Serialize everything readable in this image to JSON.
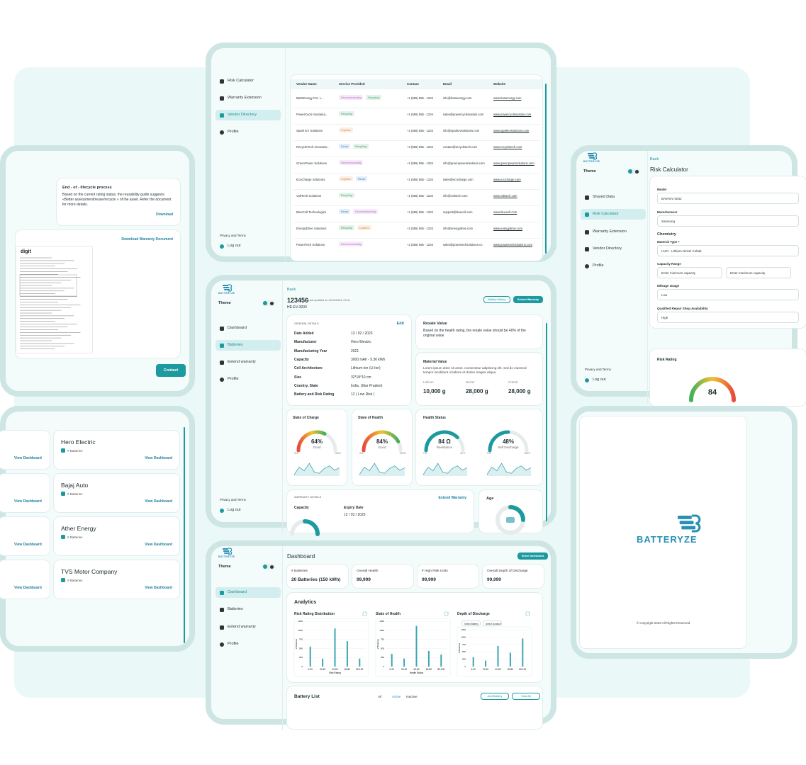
{
  "vendor_directory": {
    "menu": [
      "Risk Calculator",
      "Warranty Extension",
      "Vendor Directory",
      "Profile"
    ],
    "footer": [
      "Privacy and Terms",
      "Log out"
    ],
    "columns": [
      "Vendor Name",
      "Service Provided",
      "Contact",
      "Email",
      "Website"
    ],
    "tag_colors": {
      "Decommissioning": "#b764c9",
      "Recycling": "#3f9f6a",
      "Logistics": "#e08a3c",
      "Reuse": "#3b7fd0"
    },
    "rows": [
      {
        "name": "BatXEnergy Pvt. L...",
        "services": [
          "Decommissioning",
          "Recycling"
        ],
        "contact": "+1 (555) 555 - 1234",
        "email": "info@batxenergy.com",
        "website": "www.batxenergy.com"
      },
      {
        "name": "PowerCycle Sustaina...",
        "services": [
          "Recycling"
        ],
        "contact": "+1 (555) 555 - 1234",
        "email": "sales@powercyclesustain.com",
        "website": "www.powercyclesustain.com"
      },
      {
        "name": "Spark EV Solutions",
        "services": [
          "Logistics"
        ],
        "contact": "+1 (555) 555 - 1234",
        "email": "info@sparkevsolutions.com",
        "website": "www.sparkevsolutions.com"
      },
      {
        "name": "RecycleTech Innovatio...",
        "services": [
          "Reuse",
          "Recycling"
        ],
        "contact": "+1 (555) 555 - 1234",
        "email": "contact@recycletech.com",
        "website": "www.recycletech.com"
      },
      {
        "name": "GreenPower Solutions",
        "services": [
          "Decommissioning"
        ],
        "contact": "+1 (555) 555 - 1234",
        "email": "info@greenpowersolutions.com",
        "website": "www.greenpowersolutions.com"
      },
      {
        "name": "EcoCharge Solutions",
        "services": [
          "Logistics",
          "Reuse"
        ],
        "contact": "+1 (555) 555 - 1234",
        "email": "sales@ecocharge.com",
        "website": "www.ecocharge.com"
      },
      {
        "name": "VoltTech Solutions",
        "services": [
          "Recycling"
        ],
        "contact": "+1 (555) 555 - 1234",
        "email": "info@volttech.com",
        "website": "www.volttech.com"
      },
      {
        "name": "BlueCell Technologies",
        "services": [
          "Reuse",
          "Decommissioning"
        ],
        "contact": "+1 (555) 555 - 1234",
        "email": "support@bluecell.com",
        "website": "www.bluecell.com"
      },
      {
        "name": "EnergyDrive Solutions",
        "services": [
          "Recycling",
          "Logistics"
        ],
        "contact": "+1 (555) 555 - 1234",
        "email": "info@energydrive.com",
        "website": "www.energydrive.com"
      },
      {
        "name": "PowerTech Solutions",
        "services": [
          "Decommissioning"
        ],
        "contact": "+1 (555) 555 - 1234",
        "email": "sales@powertechsolutions.co",
        "website": "www.powertechsolutions.com"
      }
    ]
  },
  "lifecycle": {
    "title": "End - of - lifecycle process",
    "text": "Based on the current rating status, the reusability guide suggests «Better assessment/reuse/recycle » of the asset. Refer the document for more details.",
    "download": "Download",
    "warranty_link": "Download Warranty Document",
    "doc_logo": "digit",
    "contact": "Contact"
  },
  "battery_detail": {
    "logo": "BATTERYZE",
    "theme": "Theme",
    "menu": [
      "Dashboard",
      "Batteries",
      "Extend warranty",
      "Profile"
    ],
    "footer": [
      "Privacy and Terms",
      "Log out"
    ],
    "back": "Back",
    "id": "123456",
    "updated": "Last updated on 12/04/2024, 09:41",
    "model": "HE-EV-3030",
    "buttons": [
      "Battery History",
      "Extend Warranty"
    ],
    "general": {
      "title": "GENERAL DETAILS",
      "edit": "Edit",
      "rows": [
        [
          "Date Added",
          "13 / 02 / 2023"
        ],
        [
          "Manufacturer",
          "Hero Electric"
        ],
        [
          "Manufacturing Year",
          "2021"
        ],
        [
          "Capacity",
          "3000 mAh - 9.36 kWh"
        ],
        [
          "Cell Architecture",
          "Lithium-ion (Li-Ion)"
        ],
        [
          "Size",
          "32*18*10 cm"
        ],
        [
          "Country, State",
          "India, Uttar Pradesh"
        ],
        [
          "Battery and Risk Rating",
          "12  ( Low Risk )"
        ]
      ]
    },
    "resale": {
      "title": "Resale Value",
      "text": "Based on the health rating, the resale value should be 40% of the original value"
    },
    "material": {
      "title": "Material Value",
      "text": "Lorem ipsum dolor sit amet, consectetur adipiscing elit, sed do eiusmod tempor incididunt ut labore et dolore magna aliqua.",
      "items": [
        [
          "Lithium",
          "10,000 g"
        ],
        [
          "Nickel",
          "28,000 g"
        ],
        [
          "Cobalt",
          "28,000 g"
        ]
      ]
    },
    "gauges": [
      {
        "title": "State of Charge",
        "value": 64,
        "label": "64%",
        "status": "Good",
        "range": [
          0,
          100
        ],
        "range_labels": [
          "0%",
          "100%"
        ]
      },
      {
        "title": "State of Health",
        "value": 84,
        "label": "84%",
        "status": "Good",
        "range": [
          0,
          100
        ],
        "range_labels": [
          "0%",
          "100%"
        ]
      }
    ],
    "health": {
      "title": "Health Status",
      "items": [
        {
          "label": "84 Ω",
          "caption": "Resistance",
          "range_labels": [
            "0 V",
            "10 V"
          ]
        },
        {
          "label": "48%",
          "caption": "Self Discharge",
          "range_labels": [
            "0%",
            "100%"
          ]
        }
      ]
    },
    "warranty": {
      "title": "WARRANTY DETAILS",
      "extend": "Extend Warranty",
      "fields": [
        "Capacity",
        "Expiry Date"
      ],
      "expiry": "12 / 03 / 2025"
    },
    "age": "Age"
  },
  "risk_calculator": {
    "logo": "BATTERYZE",
    "theme": "Theme",
    "menu": [
      "Shared Data",
      "Risk Calculator",
      "Warranty Extension",
      "Vendor Directory",
      "Profile"
    ],
    "footer": [
      "Privacy and Terms",
      "Log out"
    ],
    "back": "Back",
    "title": "Risk Calculator",
    "section": "Chemistry",
    "fields": [
      {
        "label": "Model",
        "values": [
          "BAM-EV-3032"
        ]
      },
      {
        "label": "Manufacturer",
        "values": [
          "Samsung"
        ]
      },
      {
        "label": "Material Type *",
        "values": [
          "LNCI - Lithium Nickel Cobalt"
        ]
      },
      {
        "label": "Capacity Range",
        "values": [
          "Enter minimum capacity",
          "Enter maximum capacity"
        ]
      },
      {
        "label": "Mileage Usage",
        "values": [
          "Low"
        ]
      },
      {
        "label": "Qualified Repair Shop Availability",
        "values": [
          "High"
        ]
      }
    ],
    "rating_title": "Risk Rating",
    "rating": "84"
  },
  "vendors": {
    "side_links": [
      "View Dashboard",
      "View Dashboard",
      "View Dashboard",
      "View Dashboard"
    ],
    "cards": [
      {
        "name": "Hero Electric",
        "count": "# Batteries",
        "link": "View Dashboard"
      },
      {
        "name": "Bajaj Auto",
        "count": "# Batteries",
        "link": "View Dashboard"
      },
      {
        "name": "Ather Energy",
        "count": "# Batteries",
        "link": "View Dashboard"
      },
      {
        "name": "TVS Motor Company",
        "count": "# Batteries",
        "link": "View Dashboard"
      }
    ]
  },
  "dashboard": {
    "logo": "BATTERYZE",
    "theme": "Theme",
    "menu": [
      "Dashboard",
      "Batteries",
      "Extend warranty",
      "Profile"
    ],
    "title": "Dashboard",
    "share": "Share Dashboard",
    "stats": [
      {
        "label": "# Batteries",
        "value": "20 Batteries (150 kWh)"
      },
      {
        "label": "Overall Health",
        "value": "99,999"
      },
      {
        "label": "# High Risk Units",
        "value": "99,999"
      },
      {
        "label": "Overall Depth of Discharge",
        "value": "99,999"
      }
    ],
    "analytics": "Analytics",
    "selects": [
      "Select Battery",
      "Select Duration"
    ],
    "charts": [
      {
        "type": "bar",
        "title": "Risk Rating Distribution",
        "categories": [
          "0-20",
          "20-40",
          "40-60",
          "60-80",
          "80-100"
        ],
        "values": [
          550,
          220,
          1050,
          700,
          220
        ],
        "ylim": [
          0,
          1250
        ],
        "yticks": [
          0,
          250,
          500,
          750,
          1000,
          1250
        ],
        "ylabel": "# Batteries",
        "xlabel": "Risk Rating",
        "color": "#3aa6b2",
        "grid": true
      },
      {
        "type": "bar",
        "title": "State of Health",
        "categories": [
          "0-20",
          "20-40",
          "40-60",
          "60-80",
          "80-100"
        ],
        "values": [
          350,
          220,
          1120,
          430,
          330
        ],
        "ylim": [
          0,
          1250
        ],
        "yticks": [
          0,
          250,
          500,
          750,
          1000,
          1250
        ],
        "ylabel": "# Batteries",
        "xlabel": "Health Status",
        "color": "#3aa6b2",
        "grid": true
      },
      {
        "type": "bar",
        "title": "Depth of Discharge",
        "categories": [
          "0-20",
          "20-40",
          "40-60",
          "60-80",
          "80-100"
        ],
        "values": [
          320,
          200,
          700,
          470,
          950
        ],
        "ylim": [
          0,
          1250
        ],
        "yticks": [
          0,
          250,
          500,
          750,
          1000,
          1250
        ],
        "ylabel": "# Batteries",
        "color": "#3aa6b2",
        "grid": true
      }
    ],
    "list_title": "Battery List",
    "tabs": [
      "All",
      "Active",
      "Inactive"
    ],
    "actions": [
      "Add Battery",
      "View All"
    ]
  },
  "splash": {
    "logo": "BATTERYZE",
    "copyright": "© Copyright 2023 All Rights Reserved"
  }
}
